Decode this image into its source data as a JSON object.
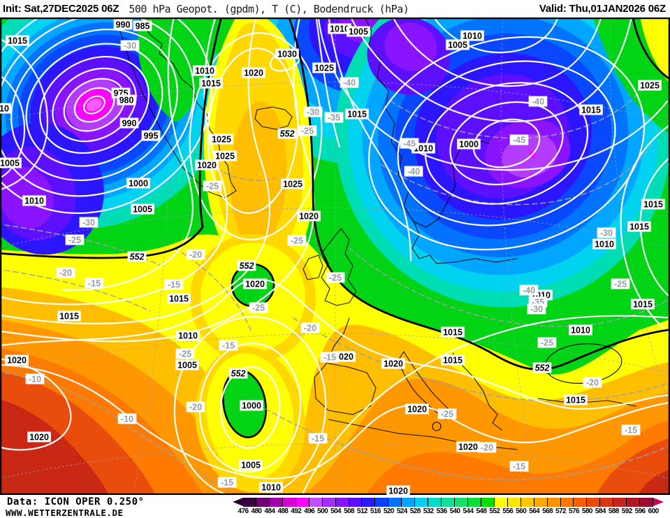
{
  "header": {
    "init_label": "Init:",
    "init_value": "Sat,27DEC2025 06Z",
    "product": "500 hPa Geopot. (gpdm), T (C), Bodendruck (hPa)",
    "valid_label": "Valid:",
    "valid_value": "Thu,01JAN2026 06Z"
  },
  "footer": {
    "data_source": "Data: ICON OPER 0.250°",
    "website": "WWW.WETTERZENTRALE.DE"
  },
  "colorbar": {
    "unit": "gpdm",
    "tick_values": [
      476,
      480,
      484,
      488,
      492,
      496,
      500,
      504,
      508,
      512,
      516,
      520,
      524,
      528,
      532,
      536,
      540,
      544,
      548,
      552,
      556,
      560,
      564,
      568,
      572,
      576,
      580,
      584,
      588,
      592,
      596,
      600
    ],
    "colors": [
      "#3a0040",
      "#6e0072",
      "#a000a8",
      "#d800d8",
      "#ff00ff",
      "#c44eff",
      "#a32cff",
      "#8714ff",
      "#5c10ff",
      "#2a18ff",
      "#0a42ff",
      "#0070ff",
      "#00a4ff",
      "#00d0f8",
      "#00dcc8",
      "#10e098",
      "#14e06c",
      "#08e038",
      "#00e000",
      "#ffff00",
      "#ffe400",
      "#ffc800",
      "#ffaa00",
      "#ff9000",
      "#ff7600",
      "#f85f00",
      "#ec4a08",
      "#da3614",
      "#c6251c",
      "#b01626",
      "#9a0c30"
    ],
    "left_arrow_color": "#2b0030",
    "right_arrow_color": "#cc0060"
  },
  "map": {
    "palette": {
      "green": "#00d414",
      "yellow": "#ffff00",
      "gold": "#ffd800",
      "amber": "#ffbe00",
      "orange": "#ff9800",
      "dorange": "#ff7a00",
      "red1": "#ea4c0c",
      "dred": "#c92814",
      "teal": "#00dcb4",
      "cyan": "#00d2f0",
      "skyblue": "#00a6ff",
      "azure": "#0074ff",
      "blue1": "#0a48ff",
      "blue2": "#2c16ff",
      "blue3": "#5c10ff",
      "purple": "#8a14ff",
      "violet": "#b43cff",
      "magenta": "#ff00ff",
      "pink": "#ff5aff",
      "isobar": "#ffffff",
      "geopot_line": "#000000",
      "temp_line": "#9aa2aa",
      "coast": "#000000",
      "temp_text": "#949ca4"
    },
    "labels": {
      "pressure": [
        [
          "1015",
          25,
          33
        ],
        [
          "990",
          176,
          10
        ],
        [
          "985",
          204,
          12
        ],
        [
          "10",
          6,
          130
        ],
        [
          "1005",
          14,
          208
        ],
        [
          "1010",
          49,
          262
        ],
        [
          "975",
          173,
          108
        ],
        [
          "980",
          181,
          118
        ],
        [
          "990",
          185,
          151
        ],
        [
          "995",
          216,
          169
        ],
        [
          "1000",
          198,
          237
        ],
        [
          "1005",
          204,
          274
        ],
        [
          "1010",
          293,
          76
        ],
        [
          "1015",
          302,
          94
        ],
        [
          "1025",
          317,
          174
        ],
        [
          "1025",
          322,
          198
        ],
        [
          "1020",
          296,
          211
        ],
        [
          "1020",
          363,
          79
        ],
        [
          "1030",
          411,
          52
        ],
        [
          "1025",
          464,
          72
        ],
        [
          "1010",
          486,
          16
        ],
        [
          "1005",
          513,
          20
        ],
        [
          "1015",
          511,
          138
        ],
        [
          "1025",
          419,
          238
        ],
        [
          "1020",
          442,
          284
        ],
        [
          "1010",
          676,
          26
        ],
        [
          "1005",
          655,
          39
        ],
        [
          "1010",
          606,
          187
        ],
        [
          "1000",
          671,
          181
        ],
        [
          "1015",
          846,
          132
        ],
        [
          "1025",
          930,
          97
        ],
        [
          "1015",
          935,
          267
        ],
        [
          "1015",
          915,
          299
        ],
        [
          "1010",
          865,
          324
        ],
        [
          "1015",
          920,
          410
        ],
        [
          "1010",
          831,
          447
        ],
        [
          "1010",
          774,
          397
        ],
        [
          "1015",
          648,
          450
        ],
        [
          "1020",
          492,
          485
        ],
        [
          "1020",
          563,
          495
        ],
        [
          "1015",
          648,
          490
        ],
        [
          "1020",
          597,
          560
        ],
        [
          "1020",
          670,
          614
        ],
        [
          "1015",
          824,
          547
        ],
        [
          "1020",
          570,
          677
        ],
        [
          "1010",
          269,
          455
        ],
        [
          "1015",
          256,
          402
        ],
        [
          "1005",
          268,
          497
        ],
        [
          "1020",
          365,
          381
        ],
        [
          "1000",
          360,
          555
        ],
        [
          "1005",
          359,
          640
        ],
        [
          "1010",
          388,
          672
        ],
        [
          "1020",
          24,
          490
        ],
        [
          "1020",
          56,
          600
        ],
        [
          "1015",
          99,
          427
        ]
      ],
      "temperature": [
        [
          "-30",
          186,
          40
        ],
        [
          "-30",
          127,
          293
        ],
        [
          "-25",
          107,
          318
        ],
        [
          "-20",
          94,
          365
        ],
        [
          "-15",
          135,
          380
        ],
        [
          "-25",
          265,
          481
        ],
        [
          "-30",
          448,
          135
        ],
        [
          "-35",
          478,
          143
        ],
        [
          "-40",
          500,
          93
        ],
        [
          "-25",
          440,
          162
        ],
        [
          "-25",
          304,
          241
        ],
        [
          "-40",
          770,
          120
        ],
        [
          "-45",
          743,
          175
        ],
        [
          "-45",
          586,
          180
        ],
        [
          "-40",
          592,
          220
        ],
        [
          "-30",
          868,
          308
        ],
        [
          "-25",
          888,
          381
        ],
        [
          "-40",
          757,
          390
        ],
        [
          "-35",
          770,
          407
        ],
        [
          "-30",
          768,
          417
        ],
        [
          "-25",
          783,
          465
        ],
        [
          "-20",
          848,
          522
        ],
        [
          "-15",
          903,
          590
        ],
        [
          "-15",
          743,
          642
        ],
        [
          "-25",
          425,
          319
        ],
        [
          "-25",
          370,
          415
        ],
        [
          "-25",
          480,
          372
        ],
        [
          "-20",
          444,
          444
        ],
        [
          "-20",
          280,
          339
        ],
        [
          "-15",
          249,
          382
        ],
        [
          "-15",
          327,
          469
        ],
        [
          "-20",
          280,
          557
        ],
        [
          "-15",
          455,
          602
        ],
        [
          "-15",
          325,
          665
        ],
        [
          "-10",
          50,
          517
        ],
        [
          "-10",
          182,
          574
        ],
        [
          "-25",
          640,
          567
        ],
        [
          "-20",
          697,
          615
        ],
        [
          "-15",
          472,
          486
        ]
      ],
      "geopotential": [
        [
          "552",
          196,
          342
        ],
        [
          "552",
          411,
          166
        ],
        [
          "552",
          353,
          355
        ],
        [
          "552",
          341,
          509
        ],
        [
          "552",
          776,
          501
        ]
      ]
    }
  }
}
